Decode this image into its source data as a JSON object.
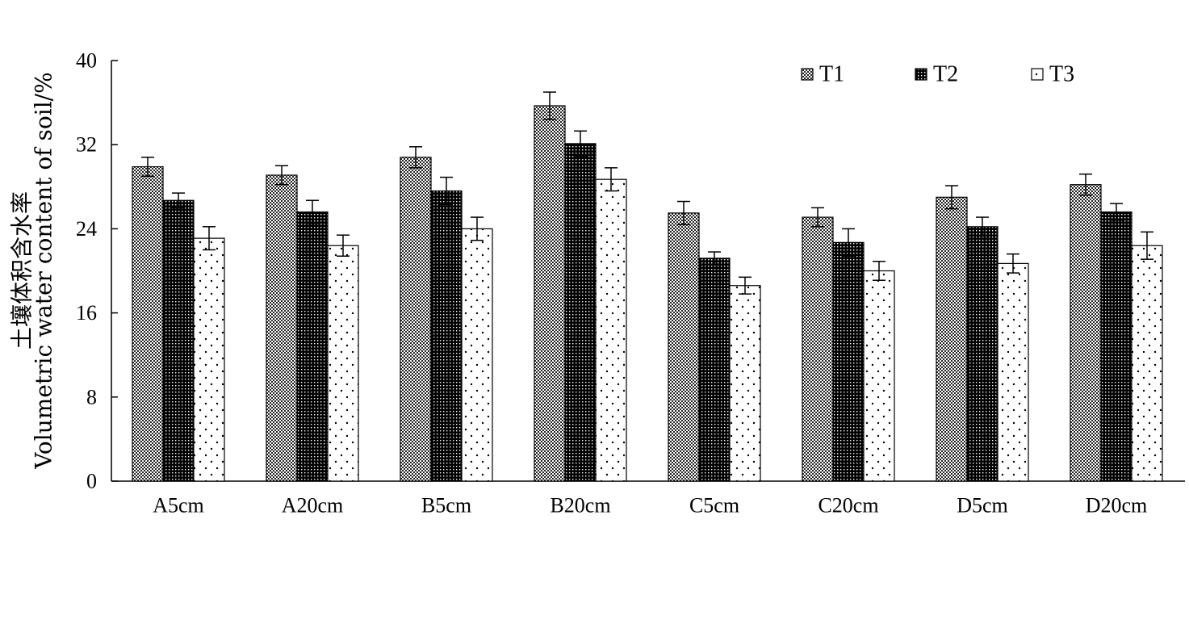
{
  "chart_data": {
    "type": "bar",
    "ylabel_lines": [
      "土壤体积含水率",
      "Volumetric water content of soil/%"
    ],
    "ylim": [
      0,
      40
    ],
    "yticks": [
      0,
      8,
      16,
      24,
      32,
      40
    ],
    "grid": false,
    "legend_position": "top-right",
    "categories": [
      "A5cm",
      "A20cm",
      "B5cm",
      "B20cm",
      "C5cm",
      "C20cm",
      "D5cm",
      "D20cm"
    ],
    "series": [
      {
        "name": "T1",
        "pattern": "checker",
        "values": [
          29.9,
          29.1,
          30.8,
          35.7,
          25.5,
          25.1,
          27.0,
          28.2
        ],
        "errors": [
          0.9,
          0.9,
          1.0,
          1.3,
          1.1,
          0.9,
          1.1,
          1.0
        ]
      },
      {
        "name": "T2",
        "pattern": "dense",
        "values": [
          26.7,
          25.6,
          27.6,
          32.1,
          21.2,
          22.7,
          24.2,
          25.6
        ],
        "errors": [
          0.7,
          1.1,
          1.3,
          1.2,
          0.6,
          1.3,
          0.9,
          0.8
        ]
      },
      {
        "name": "T3",
        "pattern": "dots",
        "values": [
          23.1,
          22.4,
          24.0,
          28.7,
          18.6,
          20.0,
          20.7,
          22.4
        ],
        "errors": [
          1.1,
          1.0,
          1.1,
          1.1,
          0.8,
          0.9,
          0.9,
          1.3
        ]
      }
    ]
  }
}
